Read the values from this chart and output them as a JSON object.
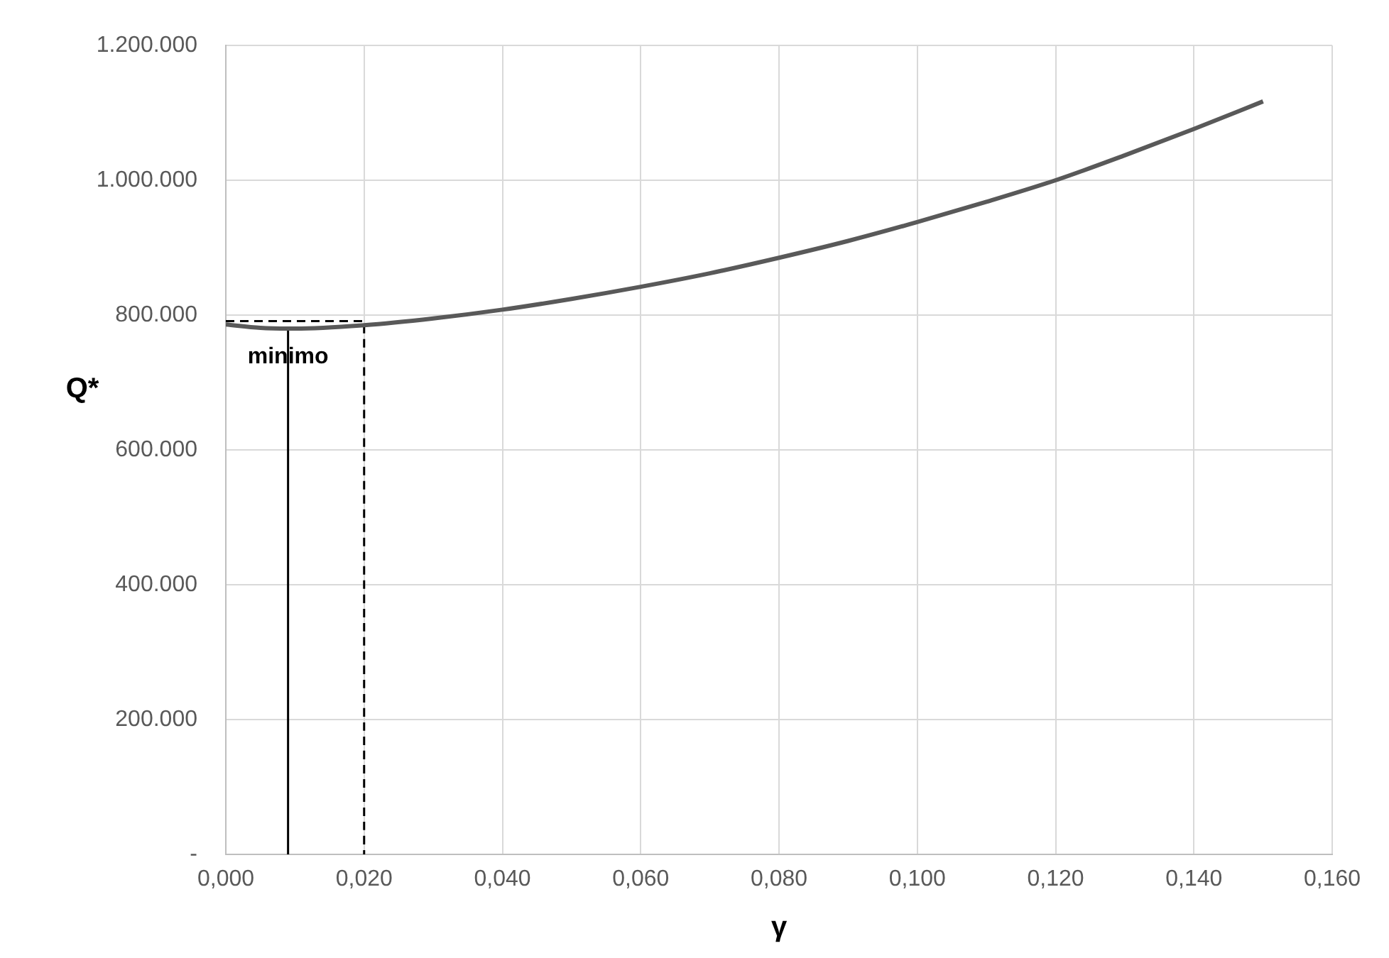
{
  "chart_data": {
    "type": "line",
    "xlabel": "γ",
    "ylabel": "Q*",
    "xlim": [
      0,
      0.16
    ],
    "ylim": [
      0,
      1200000
    ],
    "xticks": [
      {
        "value": 0,
        "label": "0,000"
      },
      {
        "value": 0.02,
        "label": "0,020"
      },
      {
        "value": 0.04,
        "label": "0,040"
      },
      {
        "value": 0.06,
        "label": "0,060"
      },
      {
        "value": 0.08,
        "label": "0,080"
      },
      {
        "value": 0.1,
        "label": "0,100"
      },
      {
        "value": 0.12,
        "label": "0,120"
      },
      {
        "value": 0.14,
        "label": "0,140"
      },
      {
        "value": 0.16,
        "label": "0,160"
      }
    ],
    "yticks": [
      {
        "value": 0,
        "label": "-"
      },
      {
        "value": 200000,
        "label": "200.000"
      },
      {
        "value": 400000,
        "label": "400.000"
      },
      {
        "value": 600000,
        "label": "600.000"
      },
      {
        "value": 800000,
        "label": "800.000"
      },
      {
        "value": 1000000,
        "label": "1.000.000"
      },
      {
        "value": 1200000,
        "label": "1.200.000"
      }
    ],
    "grid": true,
    "legend": false,
    "marker": "none",
    "series": [
      {
        "color": "#595959",
        "line_style": "solid",
        "x": [
          0,
          0.005,
          0.009,
          0.01,
          0.02,
          0.03,
          0.04,
          0.05,
          0.06,
          0.07,
          0.08,
          0.09,
          0.1,
          0.11,
          0.12,
          0.13,
          0.14,
          0.15
        ],
        "values": [
          786000,
          781000,
          780000,
          780000,
          785000,
          795000,
          808000,
          824000,
          842000,
          862000,
          885000,
          910000,
          938000,
          968000,
          1000000,
          1037000,
          1076000,
          1117000
        ]
      },
      {
        "color": "#000000",
        "line_style": "solid",
        "x": [
          0.009,
          0.009
        ],
        "values": [
          0,
          780000
        ]
      },
      {
        "color": "#000000",
        "line_style": "dashed",
        "x": [
          0,
          0.02,
          0.02
        ],
        "values": [
          791000,
          791000,
          0
        ]
      }
    ],
    "annotations": [
      {
        "text": "minimo",
        "x": 0.009,
        "y": 780000
      }
    ]
  }
}
